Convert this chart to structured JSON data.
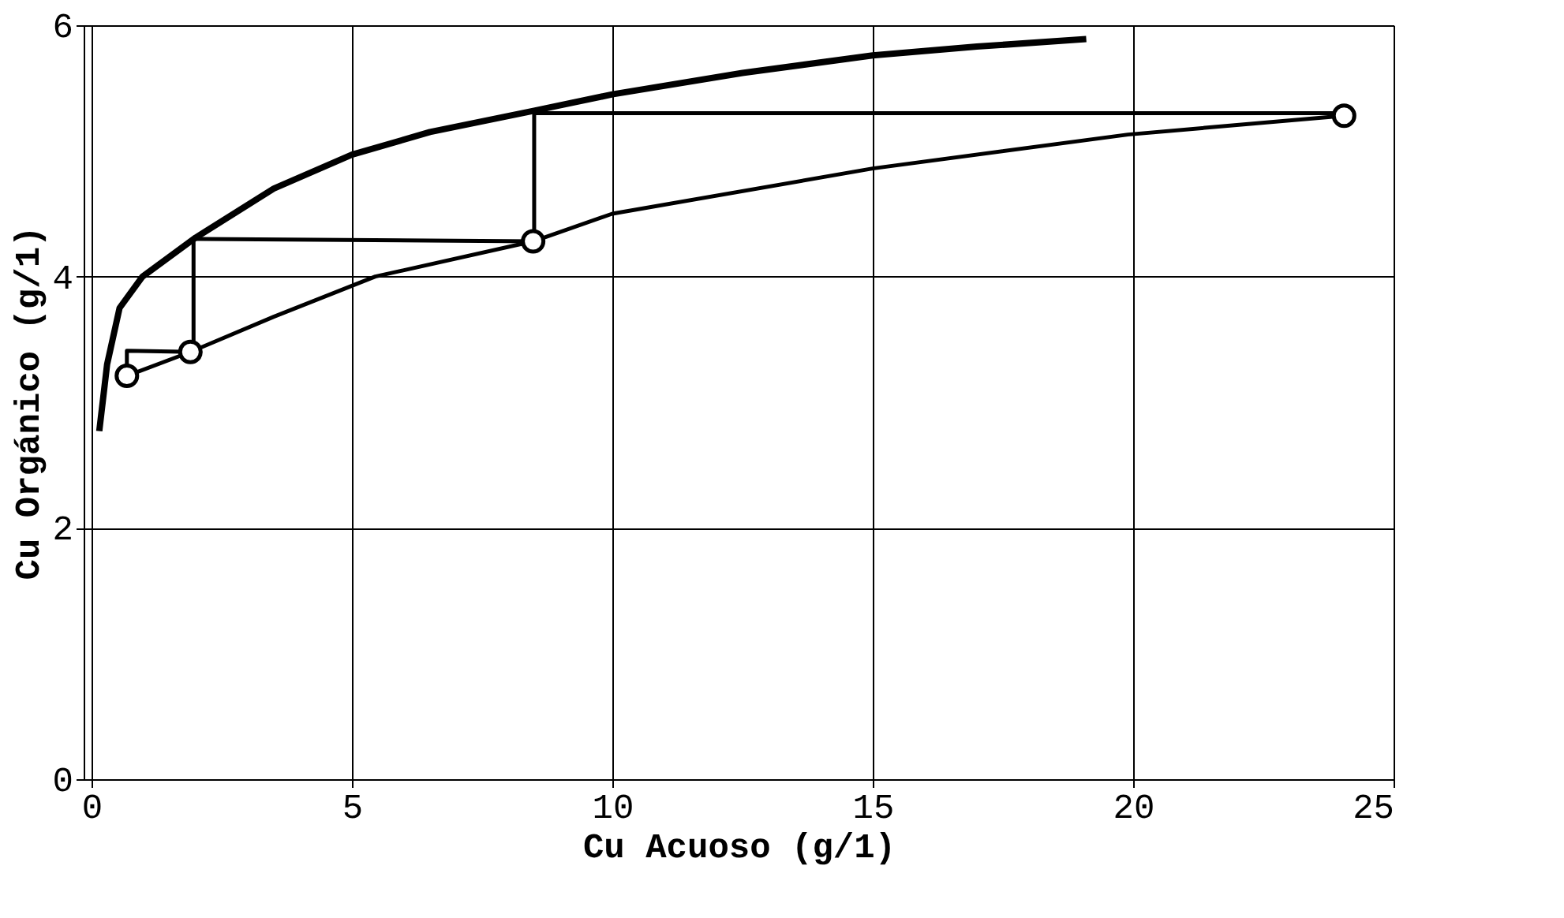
{
  "chart_data": {
    "type": "line",
    "xlabel": "Cu  Acuoso (g/1)",
    "ylabel": "Cu  Orgánico (g/1)",
    "xlim": [
      -0.15,
      25
    ],
    "ylim": [
      0,
      6
    ],
    "xticks": [
      0,
      5,
      10,
      15,
      20,
      25
    ],
    "yticks": [
      0,
      2,
      4,
      6
    ],
    "grid": true,
    "series": [
      {
        "color": "#000000",
        "marker": "none",
        "x": [
          0.15,
          0.3,
          0.54,
          0.98,
          2.0,
          3.5,
          5,
          6.5,
          8.5,
          10,
          12.5,
          15,
          17,
          19.1
        ],
        "values": [
          2.77,
          3.3,
          3.75,
          4.0,
          4.31,
          4.7,
          4.97,
          5.15,
          5.32,
          5.45,
          5.62,
          5.76,
          5.83,
          5.89
        ]
      },
      {
        "color": "#000000",
        "marker": "none",
        "x": [
          0.68,
          1.9,
          3.5,
          5.45,
          8.48,
          10,
          15,
          19.9,
          24.05
        ],
        "values": [
          3.21,
          3.4,
          3.68,
          4.0,
          4.28,
          4.5,
          4.86,
          5.13,
          5.28
        ]
      },
      {
        "color": "#000000",
        "marker": "none",
        "x": [
          24.05,
          8.5,
          8.5,
          1.96,
          1.96,
          0.68,
          0.68
        ],
        "values": [
          5.3,
          5.3,
          4.28,
          4.3,
          3.4,
          3.41,
          3.21
        ]
      },
      {
        "type": "scatter",
        "color": "#000000",
        "marker": "circle",
        "x": [
          0.68,
          1.9,
          8.48,
          24.05
        ],
        "values": [
          3.21,
          3.4,
          4.28,
          5.28
        ]
      }
    ]
  }
}
